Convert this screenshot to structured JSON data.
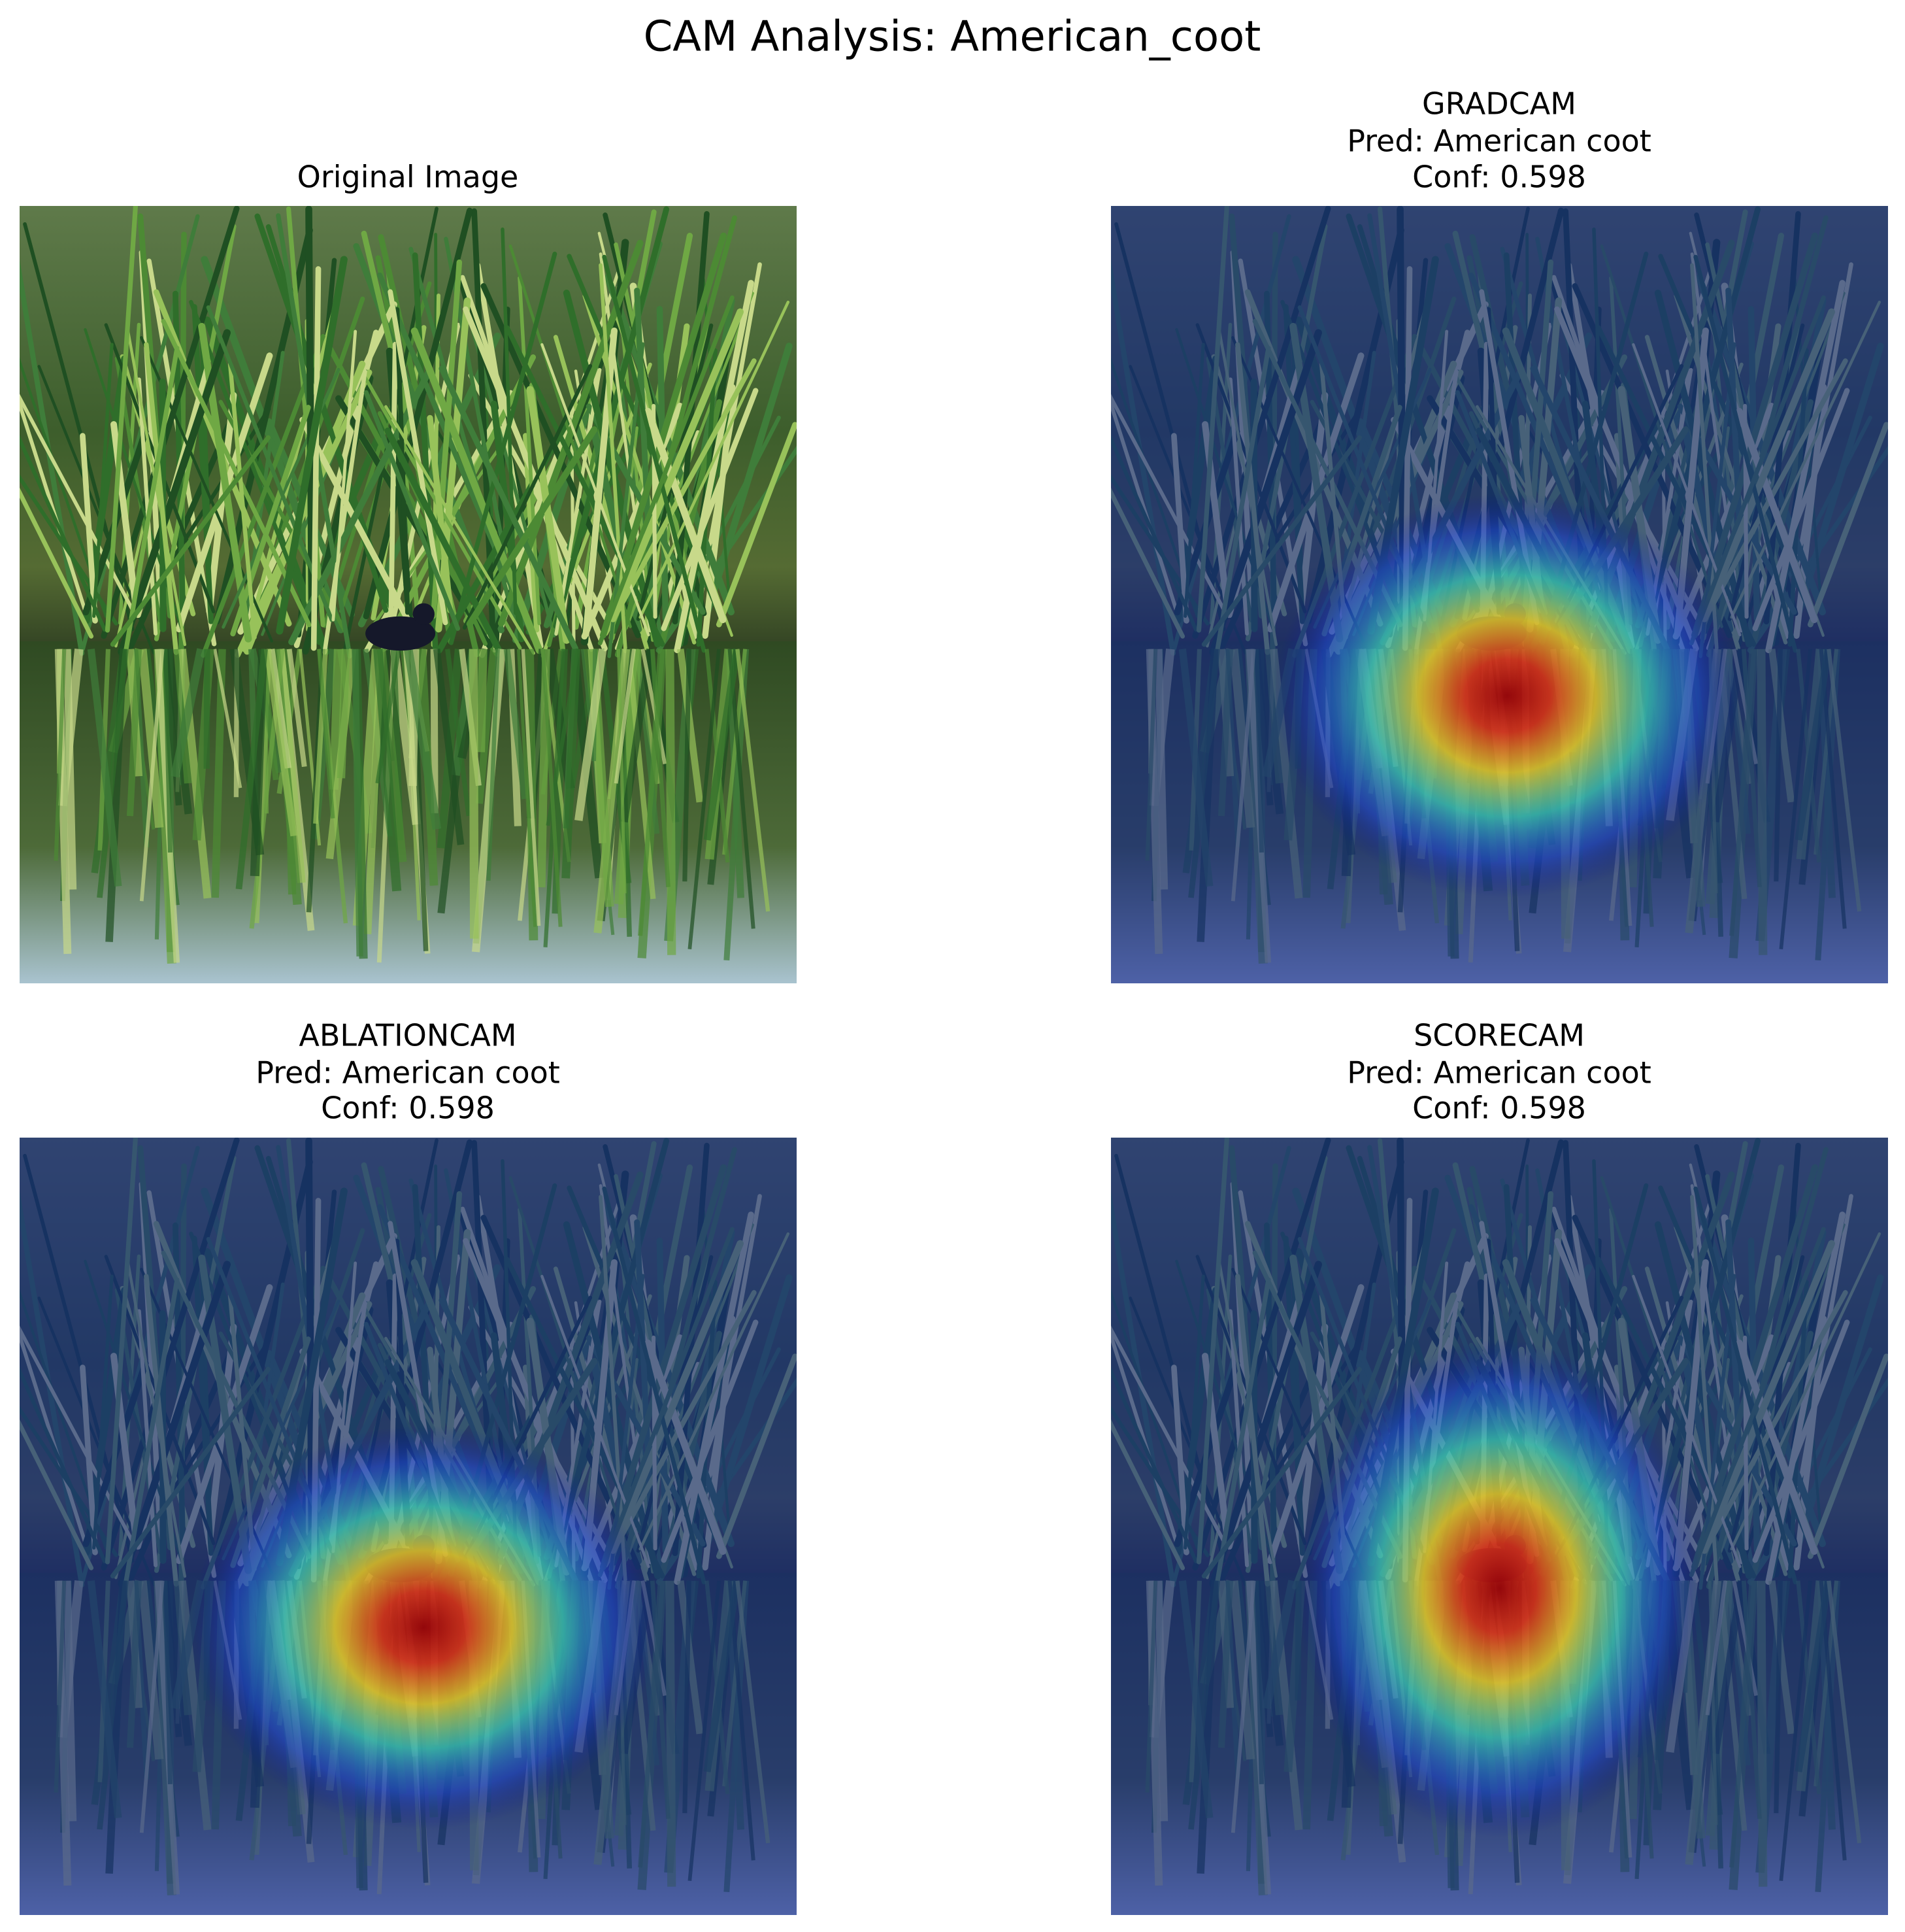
{
  "title": "CAM Analysis: American_coot",
  "panels": [
    {
      "title_lines": [
        "Original Image"
      ]
    },
    {
      "title_lines": [
        "GRADCAM",
        "Pred: American coot",
        "Conf: 0.598"
      ]
    },
    {
      "title_lines": [
        "ABLATIONCAM",
        "Pred: American coot",
        "Conf: 0.598"
      ]
    },
    {
      "title_lines": [
        "SCORECAM",
        "Pred: American coot",
        "Conf: 0.598"
      ]
    }
  ]
}
